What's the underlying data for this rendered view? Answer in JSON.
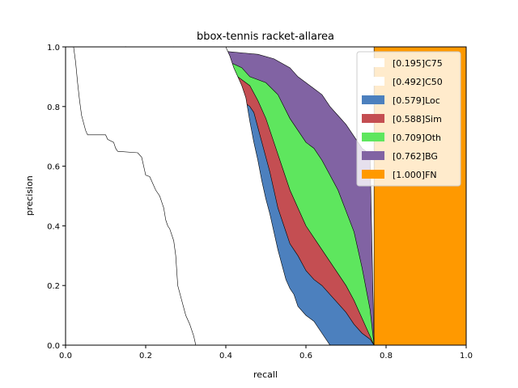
{
  "chart_data": {
    "type": "area",
    "title": "bbox-tennis racket-allarea",
    "xlabel": "recall",
    "ylabel": "precision",
    "xlim": [
      0,
      1
    ],
    "ylim": [
      0,
      1
    ],
    "xticks": [
      "0.0",
      "0.2",
      "0.4",
      "0.6",
      "0.8",
      "1.0"
    ],
    "yticks": [
      "0.0",
      "0.2",
      "0.4",
      "0.6",
      "0.8",
      "1.0"
    ],
    "grid": false,
    "legend_position": "top-right",
    "series": [
      {
        "name": "[0.195]C75",
        "color": "#ffffff",
        "points": [
          [
            0.0,
            1.0
          ],
          [
            0.02,
            1.0
          ],
          [
            0.025,
            0.95
          ],
          [
            0.03,
            0.88
          ],
          [
            0.035,
            0.82
          ],
          [
            0.04,
            0.77
          ],
          [
            0.05,
            0.72
          ],
          [
            0.055,
            0.705
          ],
          [
            0.1,
            0.705
          ],
          [
            0.105,
            0.69
          ],
          [
            0.12,
            0.68
          ],
          [
            0.125,
            0.66
          ],
          [
            0.13,
            0.65
          ],
          [
            0.18,
            0.645
          ],
          [
            0.19,
            0.63
          ],
          [
            0.195,
            0.6
          ],
          [
            0.2,
            0.57
          ],
          [
            0.21,
            0.565
          ],
          [
            0.215,
            0.55
          ],
          [
            0.225,
            0.52
          ],
          [
            0.235,
            0.5
          ],
          [
            0.245,
            0.46
          ],
          [
            0.25,
            0.42
          ],
          [
            0.255,
            0.4
          ],
          [
            0.26,
            0.39
          ],
          [
            0.27,
            0.35
          ],
          [
            0.275,
            0.3
          ],
          [
            0.28,
            0.2
          ],
          [
            0.29,
            0.15
          ],
          [
            0.3,
            0.1
          ],
          [
            0.31,
            0.07
          ],
          [
            0.32,
            0.03
          ],
          [
            0.325,
            0.0
          ]
        ]
      },
      {
        "name": "[0.492]C50",
        "color": "#ffffff",
        "points": [
          [
            0.0,
            1.0
          ],
          [
            0.4,
            1.0
          ],
          [
            0.41,
            0.97
          ],
          [
            0.42,
            0.93
          ],
          [
            0.43,
            0.9
          ],
          [
            0.44,
            0.87
          ],
          [
            0.45,
            0.83
          ],
          [
            0.46,
            0.75
          ],
          [
            0.47,
            0.68
          ],
          [
            0.48,
            0.62
          ],
          [
            0.49,
            0.55
          ],
          [
            0.5,
            0.49
          ],
          [
            0.51,
            0.44
          ],
          [
            0.52,
            0.38
          ],
          [
            0.53,
            0.32
          ],
          [
            0.54,
            0.27
          ],
          [
            0.55,
            0.22
          ],
          [
            0.56,
            0.19
          ],
          [
            0.57,
            0.17
          ],
          [
            0.58,
            0.13
          ],
          [
            0.6,
            0.1
          ],
          [
            0.62,
            0.08
          ],
          [
            0.64,
            0.04
          ],
          [
            0.66,
            0.0
          ]
        ]
      },
      {
        "name": "[0.579]Loc",
        "color": "#4c80be",
        "points": [
          [
            0.06,
            1.0
          ],
          [
            0.07,
            0.97
          ],
          [
            0.15,
            0.97
          ],
          [
            0.16,
            0.965
          ],
          [
            0.26,
            0.965
          ],
          [
            0.27,
            0.96
          ],
          [
            0.32,
            0.96
          ],
          [
            0.36,
            0.95
          ],
          [
            0.4,
            0.93
          ],
          [
            0.42,
            0.86
          ],
          [
            0.44,
            0.82
          ],
          [
            0.46,
            0.8
          ],
          [
            0.47,
            0.78
          ],
          [
            0.48,
            0.73
          ],
          [
            0.49,
            0.68
          ],
          [
            0.5,
            0.63
          ],
          [
            0.51,
            0.58
          ],
          [
            0.52,
            0.52
          ],
          [
            0.53,
            0.46
          ],
          [
            0.54,
            0.42
          ],
          [
            0.55,
            0.38
          ],
          [
            0.56,
            0.34
          ],
          [
            0.57,
            0.32
          ],
          [
            0.58,
            0.3
          ],
          [
            0.6,
            0.25
          ],
          [
            0.62,
            0.22
          ],
          [
            0.64,
            0.2
          ],
          [
            0.66,
            0.17
          ],
          [
            0.68,
            0.14
          ],
          [
            0.7,
            0.11
          ],
          [
            0.72,
            0.07
          ],
          [
            0.74,
            0.04
          ],
          [
            0.76,
            0.02
          ],
          [
            0.77,
            0.0
          ]
        ]
      },
      {
        "name": "[0.588]Sim",
        "color": "#c44e52",
        "points": [
          [
            0.36,
            0.96
          ],
          [
            0.4,
            0.94
          ],
          [
            0.42,
            0.91
          ],
          [
            0.44,
            0.89
          ],
          [
            0.46,
            0.87
          ],
          [
            0.48,
            0.82
          ],
          [
            0.5,
            0.76
          ],
          [
            0.52,
            0.68
          ],
          [
            0.54,
            0.6
          ],
          [
            0.56,
            0.52
          ],
          [
            0.58,
            0.46
          ],
          [
            0.6,
            0.4
          ],
          [
            0.62,
            0.36
          ],
          [
            0.64,
            0.32
          ],
          [
            0.66,
            0.28
          ],
          [
            0.68,
            0.24
          ],
          [
            0.7,
            0.2
          ],
          [
            0.72,
            0.15
          ],
          [
            0.74,
            0.09
          ],
          [
            0.76,
            0.03
          ],
          [
            0.77,
            0.0
          ]
        ]
      },
      {
        "name": "[0.709]Oth",
        "color": "#5ee65e",
        "points": [
          [
            0.15,
            1.0
          ],
          [
            0.16,
            0.98
          ],
          [
            0.27,
            0.975
          ],
          [
            0.28,
            0.97
          ],
          [
            0.36,
            0.97
          ],
          [
            0.4,
            0.955
          ],
          [
            0.44,
            0.93
          ],
          [
            0.46,
            0.9
          ],
          [
            0.5,
            0.88
          ],
          [
            0.53,
            0.84
          ],
          [
            0.56,
            0.76
          ],
          [
            0.58,
            0.72
          ],
          [
            0.6,
            0.68
          ],
          [
            0.62,
            0.66
          ],
          [
            0.64,
            0.62
          ],
          [
            0.66,
            0.57
          ],
          [
            0.68,
            0.52
          ],
          [
            0.7,
            0.45
          ],
          [
            0.72,
            0.38
          ],
          [
            0.74,
            0.26
          ],
          [
            0.76,
            0.12
          ],
          [
            0.77,
            0.0
          ]
        ]
      },
      {
        "name": "[0.762]BG",
        "color": "#8163a3",
        "points": [
          [
            0.27,
            1.0
          ],
          [
            0.28,
            0.99
          ],
          [
            0.36,
            0.99
          ],
          [
            0.4,
            0.985
          ],
          [
            0.44,
            0.98
          ],
          [
            0.48,
            0.975
          ],
          [
            0.52,
            0.96
          ],
          [
            0.56,
            0.93
          ],
          [
            0.58,
            0.9
          ],
          [
            0.6,
            0.88
          ],
          [
            0.62,
            0.86
          ],
          [
            0.64,
            0.84
          ],
          [
            0.66,
            0.8
          ],
          [
            0.68,
            0.77
          ],
          [
            0.7,
            0.74
          ],
          [
            0.72,
            0.7
          ],
          [
            0.74,
            0.66
          ],
          [
            0.76,
            0.64
          ],
          [
            0.77,
            0.0
          ]
        ]
      },
      {
        "name": "[1.000]FN",
        "color": "#ff9900",
        "points": [
          [
            0.77,
            1.0
          ],
          [
            1.0,
            1.0
          ]
        ]
      }
    ]
  }
}
